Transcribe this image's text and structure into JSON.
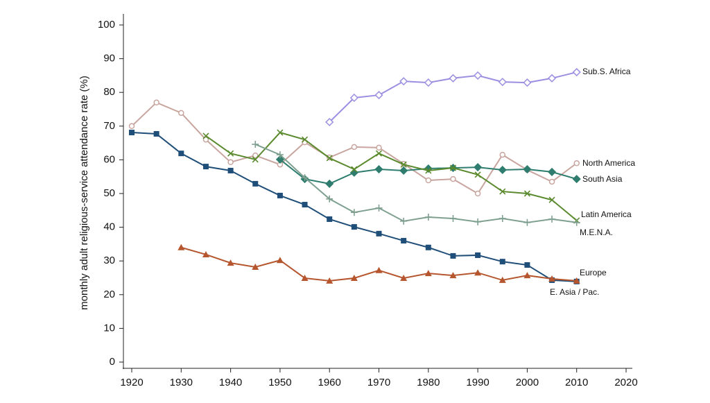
{
  "chart_data": {
    "type": "line",
    "y_label": "monthly adult religious-service attendance rate (%)",
    "x": [
      1920,
      1925,
      1930,
      1935,
      1940,
      1945,
      1950,
      1955,
      1960,
      1965,
      1970,
      1975,
      1980,
      1985,
      1990,
      1995,
      2000,
      2005,
      2010
    ],
    "xlim": [
      1920,
      2020
    ],
    "xticks": [
      1920,
      1930,
      1940,
      1950,
      1960,
      1970,
      1980,
      1990,
      2000,
      2010,
      2020
    ],
    "ylim": [
      0,
      100
    ],
    "yticks": [
      0,
      10,
      20,
      30,
      40,
      50,
      60,
      70,
      80,
      90,
      100
    ],
    "grid": false,
    "series": [
      {
        "name": "Sub.S. Africa",
        "color": "#9a8fe0",
        "marker": "diamond-open",
        "values": [
          null,
          null,
          null,
          null,
          null,
          null,
          null,
          null,
          71.2,
          78.4,
          79.2,
          83.3,
          82.9,
          84.2,
          85.0,
          83.1,
          82.9,
          84.2,
          86.0
        ]
      },
      {
        "name": "North America",
        "color": "#c8a59f",
        "marker": "circle",
        "values": [
          70.0,
          77.0,
          73.9,
          66.0,
          59.3,
          61.3,
          58.6,
          65.2,
          60.7,
          63.8,
          63.6,
          58.8,
          53.9,
          54.3,
          50.0,
          61.5,
          57.0,
          53.5,
          59.0
        ]
      },
      {
        "name": "South Asia",
        "color": "#2e7d6e",
        "marker": "diamond",
        "values": [
          null,
          null,
          null,
          null,
          null,
          null,
          60.1,
          54.3,
          52.9,
          56.2,
          57.2,
          56.8,
          57.4,
          57.6,
          57.8,
          57.0,
          57.2,
          56.4,
          54.3
        ]
      },
      {
        "name": "Latin America",
        "color": "#5a8a2d",
        "marker": "x",
        "values": [
          null,
          null,
          null,
          67.1,
          61.9,
          60.1,
          68.1,
          66.0,
          60.5,
          57.2,
          61.9,
          58.6,
          56.8,
          57.6,
          55.6,
          50.6,
          50.0,
          48.1,
          42.0
        ]
      },
      {
        "name": "M.E.N.A.",
        "color": "#7fa090",
        "marker": "plus",
        "values": [
          null,
          null,
          null,
          null,
          null,
          64.6,
          61.5,
          54.7,
          48.4,
          44.4,
          45.7,
          41.8,
          43.0,
          42.6,
          41.6,
          42.6,
          41.4,
          42.4,
          41.4
        ]
      },
      {
        "name": "Europe",
        "color": "#1f4e79",
        "marker": "square",
        "values": [
          68.1,
          67.7,
          61.9,
          58.0,
          56.8,
          52.9,
          49.4,
          46.7,
          42.4,
          40.1,
          38.1,
          36.0,
          34.0,
          31.5,
          31.7,
          29.8,
          28.8,
          24.3,
          23.9
        ]
      },
      {
        "name": "E. Asia / Pac.",
        "color": "#b5562e",
        "marker": "triangle",
        "values": [
          null,
          null,
          34.0,
          31.9,
          29.4,
          28.2,
          30.2,
          24.9,
          24.1,
          24.9,
          27.2,
          24.9,
          26.3,
          25.7,
          26.5,
          24.3,
          25.7,
          24.7,
          24.1
        ]
      }
    ]
  }
}
